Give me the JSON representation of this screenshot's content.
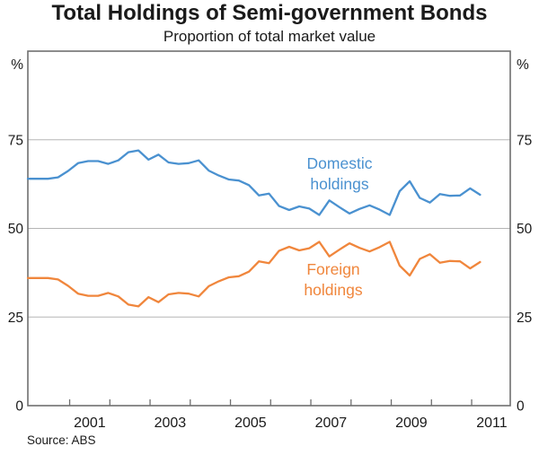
{
  "source_note": "Source: ABS",
  "chart_data": {
    "type": "line",
    "title": "Total Holdings of Semi-government Bonds",
    "subtitle": "Proportion of total market value",
    "unit": "%",
    "ylim": [
      0,
      100
    ],
    "yticks": [
      0,
      25,
      50,
      75
    ],
    "grid": true,
    "legend_position": "inline-annotations",
    "xlim": [
      1999.96,
      2011.96
    ],
    "xticks_minor": [
      2001,
      2002,
      2003,
      2004,
      2005,
      2006,
      2007,
      2008,
      2009,
      2010,
      2011
    ],
    "xtick_labels": [
      "2001",
      "2003",
      "2005",
      "2007",
      "2009",
      "2011"
    ],
    "frame_color": "#6f6f6f",
    "gridline_color": "#b5b5b5",
    "text_color": "#1a1a1a",
    "quarters": [
      "1999 Q4",
      "2000 Q1",
      "2000 Q2",
      "2000 Q3",
      "2000 Q4",
      "2001 Q1",
      "2001 Q2",
      "2001 Q3",
      "2001 Q4",
      "2002 Q1",
      "2002 Q2",
      "2002 Q3",
      "2002 Q4",
      "2003 Q1",
      "2003 Q2",
      "2003 Q3",
      "2003 Q4",
      "2004 Q1",
      "2004 Q2",
      "2004 Q3",
      "2004 Q4",
      "2005 Q1",
      "2005 Q2",
      "2005 Q3",
      "2005 Q4",
      "2006 Q1",
      "2006 Q2",
      "2006 Q3",
      "2006 Q4",
      "2007 Q1",
      "2007 Q2",
      "2007 Q3",
      "2007 Q4",
      "2008 Q1",
      "2008 Q2",
      "2008 Q3",
      "2008 Q4",
      "2009 Q1",
      "2009 Q2",
      "2009 Q3",
      "2009 Q4",
      "2010 Q1",
      "2010 Q2",
      "2010 Q3",
      "2010 Q4",
      "2011 Q1"
    ],
    "series": [
      {
        "name": "Domestic holdings",
        "label_lines": [
          "Domestic",
          "holdings"
        ],
        "color": "#4a91d0",
        "values": [
          64.0,
          64.0,
          64.0,
          64.4,
          66.2,
          68.4,
          69.0,
          69.0,
          68.2,
          69.2,
          71.5,
          72.0,
          69.4,
          70.8,
          68.6,
          68.2,
          68.4,
          69.2,
          66.3,
          64.9,
          63.8,
          63.5,
          62.2,
          59.3,
          59.8,
          56.3,
          55.2,
          56.2,
          55.6,
          53.8,
          57.9,
          56.0,
          54.2,
          55.5,
          56.5,
          55.3,
          53.8,
          60.5,
          63.3,
          58.6,
          57.3,
          59.7,
          59.2,
          59.3,
          61.3,
          59.5
        ]
      },
      {
        "name": "Foreign holdings",
        "label_lines": [
          "Foreign",
          "holdings"
        ],
        "color": "#f0863c",
        "values": [
          36.0,
          36.0,
          36.0,
          35.6,
          33.8,
          31.6,
          31.0,
          31.0,
          31.8,
          30.8,
          28.5,
          28.0,
          30.6,
          29.2,
          31.4,
          31.8,
          31.6,
          30.8,
          33.7,
          35.1,
          36.2,
          36.5,
          37.8,
          40.7,
          40.2,
          43.7,
          44.8,
          43.8,
          44.4,
          46.2,
          42.1,
          44.0,
          45.8,
          44.5,
          43.5,
          44.7,
          46.2,
          39.5,
          36.7,
          41.4,
          42.7,
          40.3,
          40.8,
          40.7,
          38.7,
          40.5
        ]
      }
    ]
  }
}
